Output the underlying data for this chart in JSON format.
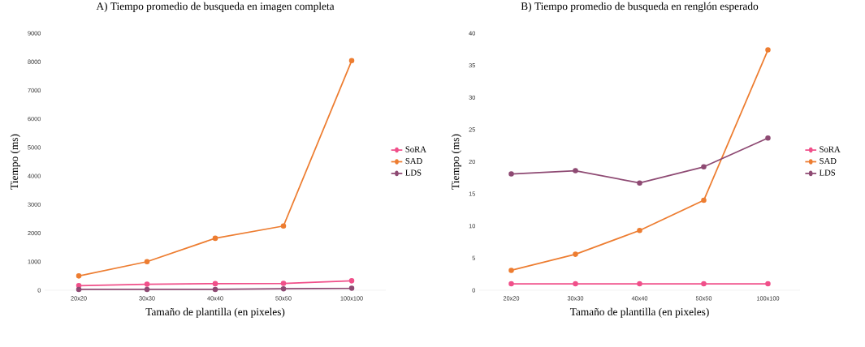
{
  "chart_data": [
    {
      "type": "line",
      "title": "A) Tiempo promedio de busqueda en imagen completa",
      "xlabel": "Tamaño de plantilla (en pixeles)",
      "ylabel": "Tiempo (ms)",
      "categories": [
        "20x20",
        "30x30",
        "40x40",
        "50x50",
        "100x100"
      ],
      "series": [
        {
          "name": "SoRA",
          "color": "#f0508a",
          "values": [
            160,
            210,
            230,
            240,
            330
          ]
        },
        {
          "name": "SAD",
          "color": "#ed7d31",
          "values": [
            500,
            1000,
            1820,
            2250,
            8040
          ]
        },
        {
          "name": "LDS",
          "color": "#8e4a73",
          "values": [
            30,
            30,
            30,
            50,
            70
          ]
        }
      ],
      "ylim": [
        0,
        9000
      ],
      "yticks": [
        0,
        1000,
        2000,
        3000,
        4000,
        5000,
        6000,
        7000,
        8000,
        9000
      ],
      "grid": false,
      "legend": "right",
      "marker": "circle",
      "line_style": "solid"
    },
    {
      "type": "line",
      "title": "B) Tiempo promedio de busqueda en renglón esperado",
      "xlabel": "Tamaño de plantilla (en pixeles)",
      "ylabel": "Tiempo (ms)",
      "categories": [
        "20x20",
        "30x30",
        "40x40",
        "50x50",
        "100x100"
      ],
      "series": [
        {
          "name": "SoRA",
          "color": "#f0508a",
          "values": [
            1,
            1,
            1,
            1,
            1
          ]
        },
        {
          "name": "SAD",
          "color": "#ed7d31",
          "values": [
            3.1,
            5.6,
            9.3,
            14,
            37.4
          ]
        },
        {
          "name": "LDS",
          "color": "#8e4a73",
          "values": [
            18.1,
            18.6,
            16.7,
            19.2,
            23.7
          ]
        }
      ],
      "ylim": [
        0,
        40
      ],
      "yticks": [
        0,
        5,
        10,
        15,
        20,
        25,
        30,
        35,
        40
      ],
      "grid": false,
      "legend": "right",
      "marker": "circle",
      "line_style": "solid"
    }
  ]
}
